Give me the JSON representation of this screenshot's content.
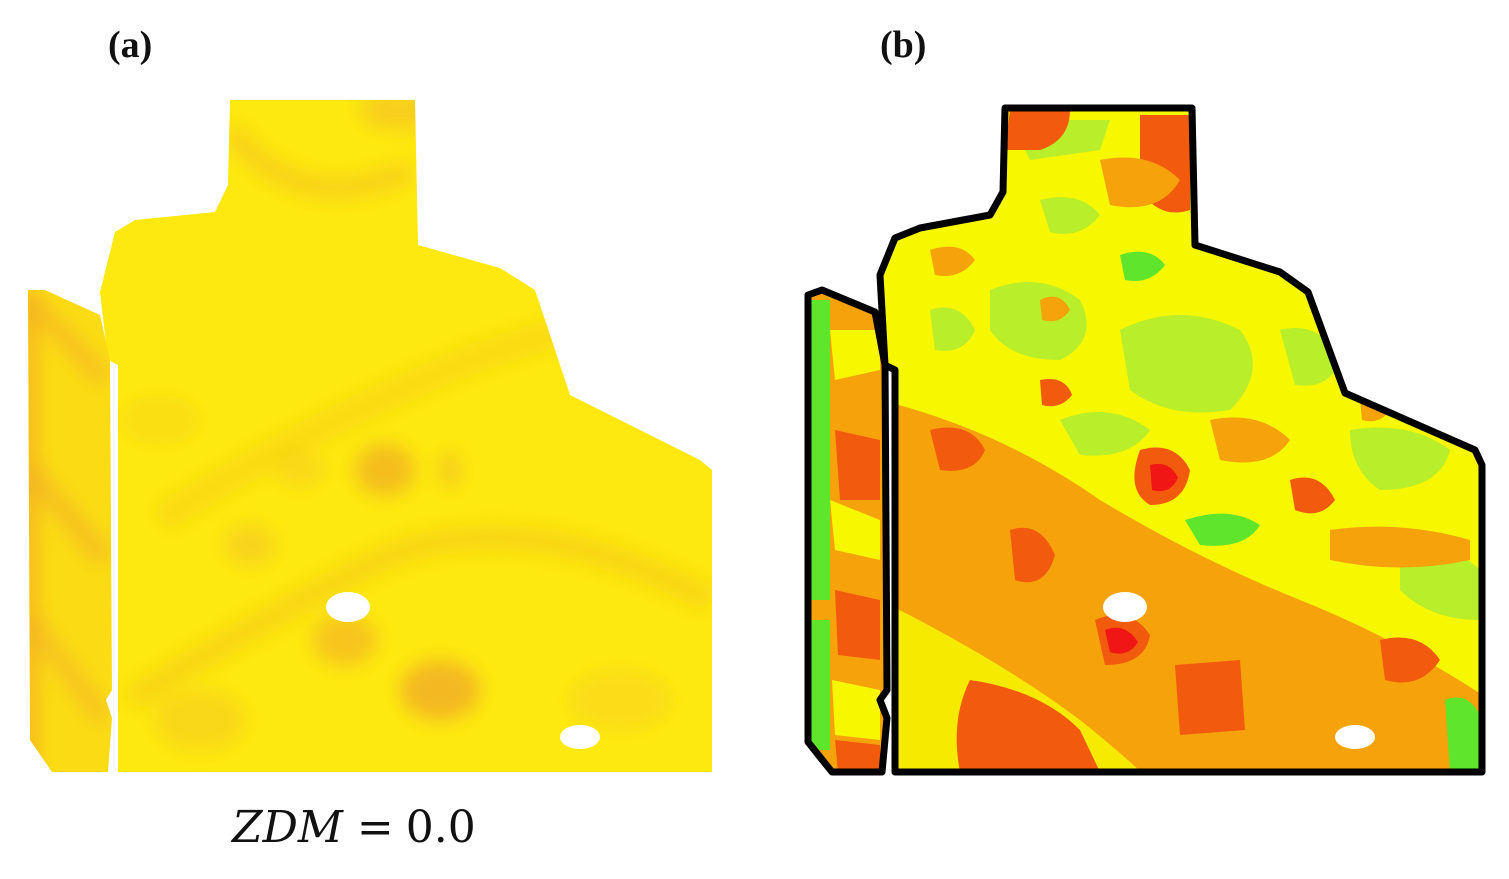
{
  "panels": [
    {
      "label": "(a)",
      "zdm_label": "ZDM",
      "zdm_equals": "=",
      "zdm_value": "0.0",
      "colors": {
        "base": "#fde910",
        "light": "#ffee33",
        "mid": "#f9d414",
        "dark": "#f2b524",
        "edge": "#f0a22a"
      }
    },
    {
      "label": "(b)",
      "colors": {
        "yellow": "#f7f700",
        "light_green": "#b8ee2a",
        "green": "#5fe52b",
        "orange": "#f6a20b",
        "red_orange": "#f25a0e",
        "red": "#f01616",
        "outline": "#000000"
      }
    }
  ]
}
